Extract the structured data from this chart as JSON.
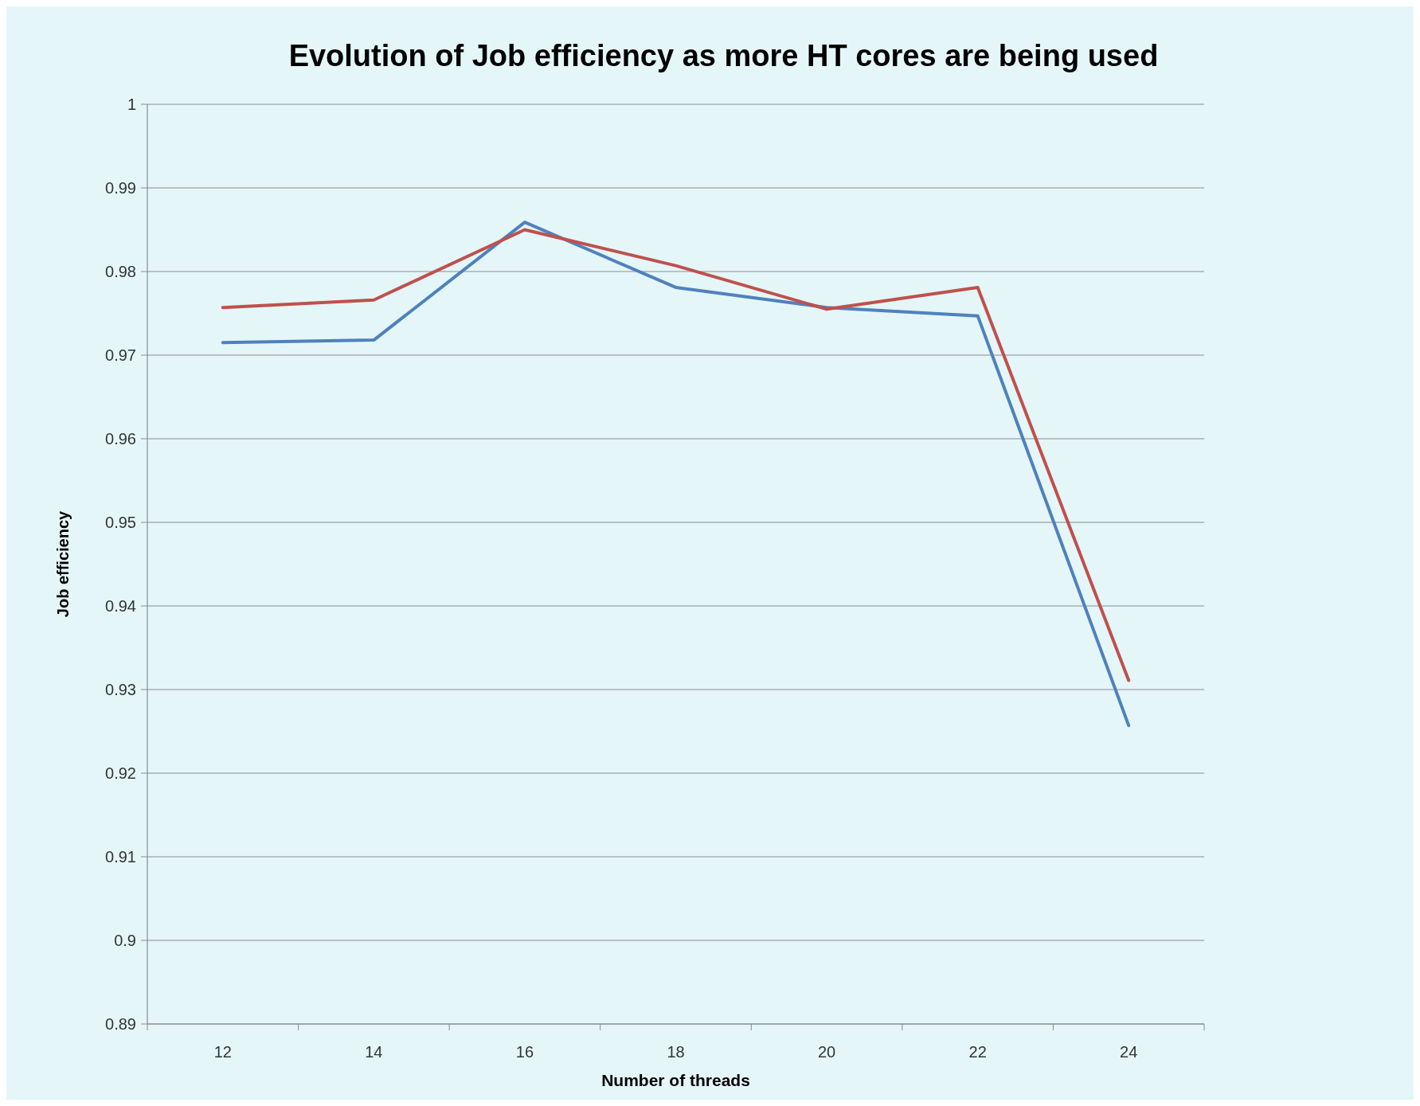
{
  "chart_data": {
    "type": "line",
    "title": "Evolution of Job efficiency as more HT cores are being used",
    "xlabel": "Number of threads",
    "ylabel": "Job efficiency",
    "categories": [
      "12",
      "14",
      "16",
      "18",
      "20",
      "22",
      "24"
    ],
    "series": [
      {
        "color": "#4f81bd",
        "values": [
          0.9715,
          0.9718,
          0.9859,
          0.9781,
          0.9757,
          0.9747,
          0.9257
        ]
      },
      {
        "color": "#c0504d",
        "values": [
          0.9757,
          0.9766,
          0.985,
          0.9807,
          0.9755,
          0.9781,
          0.9311
        ]
      }
    ],
    "ylim": [
      0.89,
      1
    ],
    "yticks": [
      0.89,
      0.9,
      0.91,
      0.92,
      0.93,
      0.94,
      0.95,
      0.96,
      0.97,
      0.98,
      0.99,
      1
    ],
    "grid": "y",
    "marker": "none",
    "line_style": "solid"
  }
}
